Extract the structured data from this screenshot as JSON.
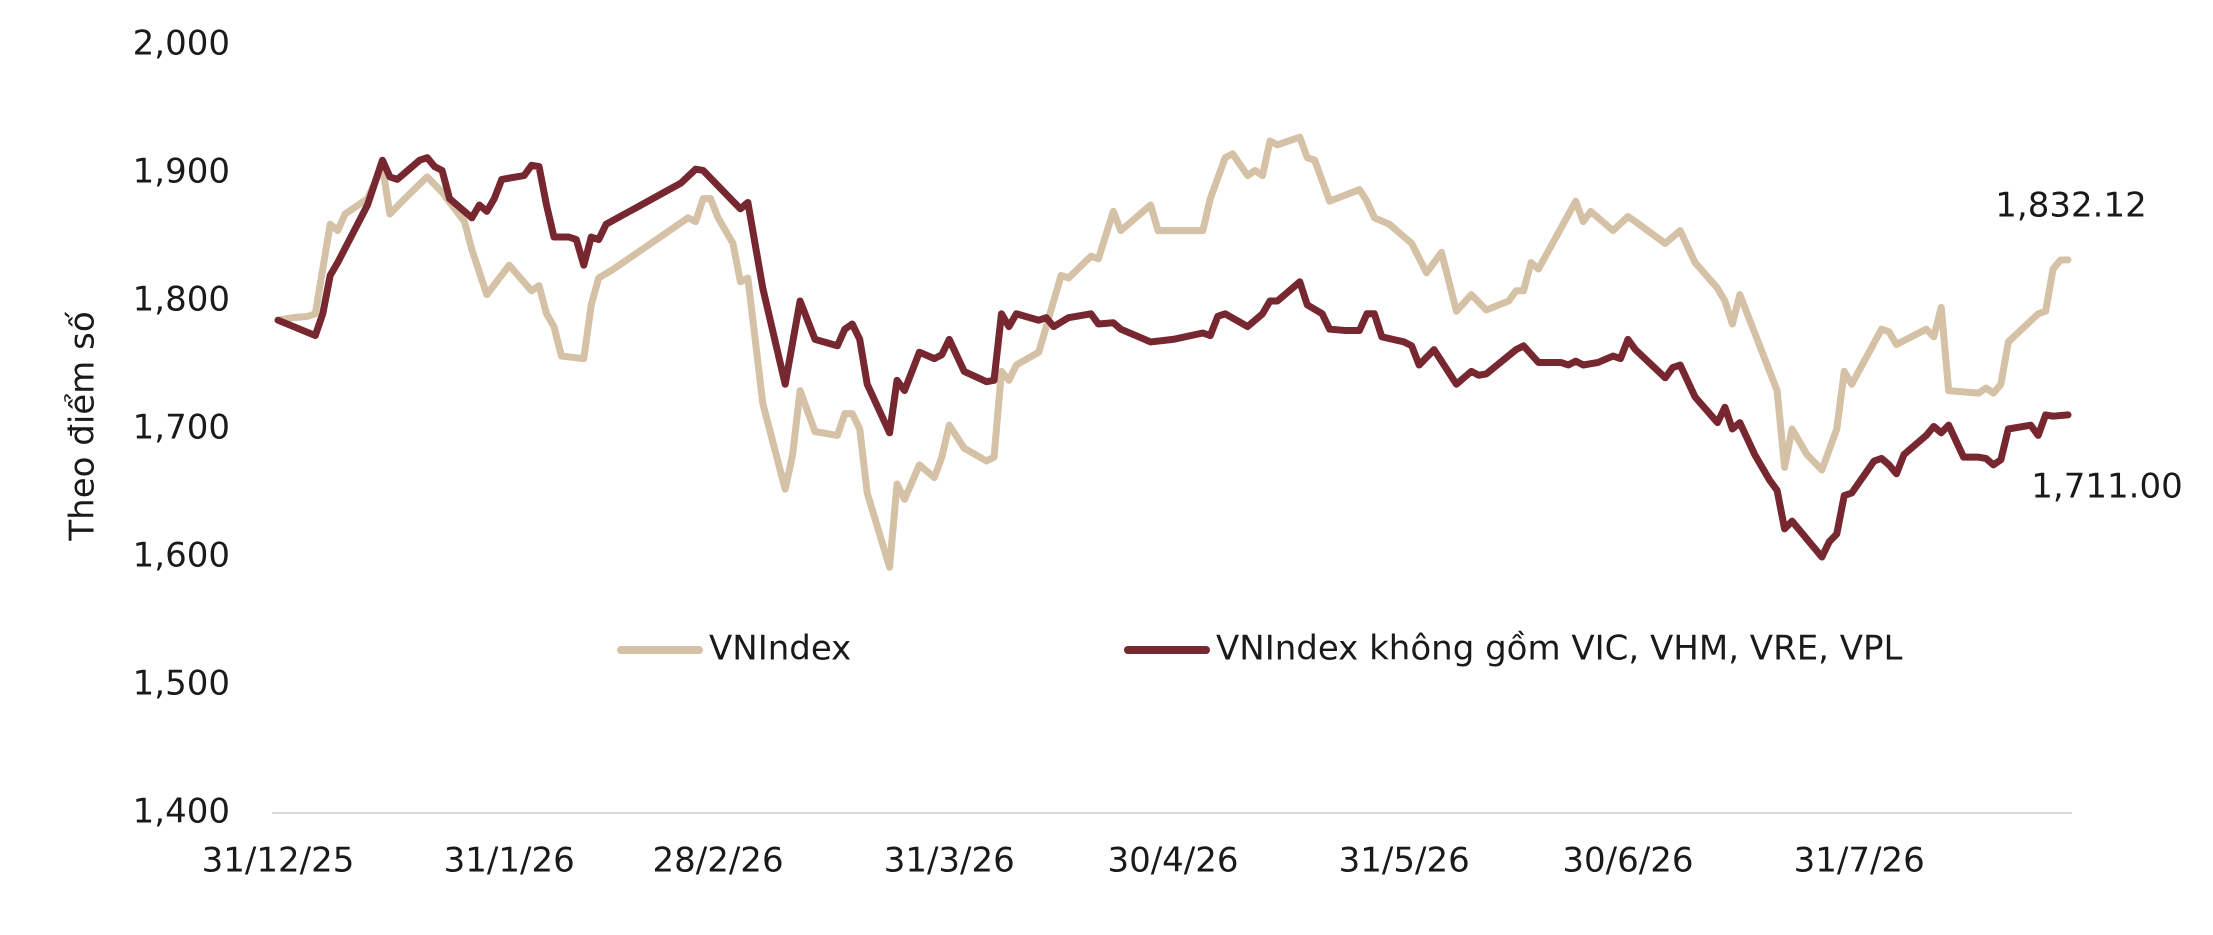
{
  "chart_data": {
    "type": "line",
    "y_label": "Theo điểm số",
    "ylim": [
      1400,
      2000
    ],
    "yticks": [
      {
        "value": 1400,
        "label": "1,400"
      },
      {
        "value": 1500,
        "label": "1,500"
      },
      {
        "value": 1600,
        "label": "1,600"
      },
      {
        "value": 1700,
        "label": "1,700"
      },
      {
        "value": 1800,
        "label": "1,800"
      },
      {
        "value": 1900,
        "label": "1,900"
      },
      {
        "value": 2000,
        "label": "2,000"
      }
    ],
    "xlim": [
      "2025-12-31",
      "2026-08-28"
    ],
    "xticks": [
      {
        "value": "2025-12-31",
        "label": "31/12/25"
      },
      {
        "value": "2026-01-31",
        "label": "31/1/26"
      },
      {
        "value": "2026-02-28",
        "label": "28/2/26"
      },
      {
        "value": "2026-03-31",
        "label": "31/3/26"
      },
      {
        "value": "2026-04-30",
        "label": "30/4/26"
      },
      {
        "value": "2026-05-31",
        "label": "31/5/26"
      },
      {
        "value": "2026-06-30",
        "label": "30/6/26"
      },
      {
        "value": "2026-07-31",
        "label": "31/7/26"
      }
    ],
    "grid": false,
    "legend": "center",
    "series": [
      {
        "name": "VNIndex",
        "color": "#d5c1a6",
        "end_label": "1,832.12",
        "x": [
          "2025-12-31",
          "2026-01-02",
          "2026-01-04",
          "2026-01-05",
          "2026-01-07",
          "2026-01-08",
          "2026-01-09",
          "2026-01-12",
          "2026-01-14",
          "2026-01-15",
          "2026-01-17",
          "2026-01-20",
          "2026-01-22",
          "2026-01-25",
          "2026-01-26",
          "2026-01-28",
          "2026-01-31",
          "2026-02-03",
          "2026-02-04",
          "2026-02-05",
          "2026-02-06",
          "2026-02-07",
          "2026-02-10",
          "2026-02-11",
          "2026-02-12",
          "2026-02-14",
          "2026-02-24",
          "2026-02-25",
          "2026-02-26",
          "2026-02-27",
          "2026-02-28",
          "2026-03-02",
          "2026-03-03",
          "2026-03-04",
          "2026-03-06",
          "2026-03-09",
          "2026-03-10",
          "2026-03-11",
          "2026-03-13",
          "2026-03-16",
          "2026-03-17",
          "2026-03-18",
          "2026-03-19",
          "2026-03-20",
          "2026-03-23",
          "2026-03-24",
          "2026-03-25",
          "2026-03-27",
          "2026-03-29",
          "2026-03-30",
          "2026-03-31",
          "2026-04-02",
          "2026-04-05",
          "2026-04-06",
          "2026-04-07",
          "2026-04-08",
          "2026-04-09",
          "2026-04-12",
          "2026-04-15",
          "2026-04-16",
          "2026-04-19",
          "2026-04-20",
          "2026-04-22",
          "2026-04-23",
          "2026-04-27",
          "2026-04-28",
          "2026-05-04",
          "2026-05-05",
          "2026-05-07",
          "2026-05-08",
          "2026-05-10",
          "2026-05-11",
          "2026-05-12",
          "2026-05-13",
          "2026-05-14",
          "2026-05-17",
          "2026-05-18",
          "2026-05-19",
          "2026-05-21",
          "2026-05-25",
          "2026-05-26",
          "2026-05-27",
          "2026-05-29",
          "2026-06-01",
          "2026-06-03",
          "2026-06-04",
          "2026-06-05",
          "2026-06-07",
          "2026-06-09",
          "2026-06-11",
          "2026-06-14",
          "2026-06-15",
          "2026-06-16",
          "2026-06-17",
          "2026-06-18",
          "2026-06-23",
          "2026-06-24",
          "2026-06-25",
          "2026-06-28",
          "2026-06-30",
          "2026-07-01",
          "2026-07-05",
          "2026-07-07",
          "2026-07-09",
          "2026-07-12",
          "2026-07-13",
          "2026-07-14",
          "2026-07-15",
          "2026-07-20",
          "2026-07-21",
          "2026-07-22",
          "2026-07-24",
          "2026-07-26",
          "2026-07-28",
          "2026-07-29",
          "2026-07-30",
          "2026-08-03",
          "2026-08-04",
          "2026-08-05",
          "2026-08-09",
          "2026-08-10",
          "2026-08-11",
          "2026-08-12",
          "2026-08-16",
          "2026-08-17",
          "2026-08-18",
          "2026-08-19",
          "2026-08-20",
          "2026-08-24",
          "2026-08-25",
          "2026-08-26",
          "2026-08-27",
          "2026-08-28"
        ],
        "values": [
          1785,
          1787,
          1788,
          1790,
          1860,
          1855,
          1868,
          1880,
          1905,
          1868,
          1880,
          1897,
          1885,
          1862,
          1840,
          1805,
          1828,
          1808,
          1812,
          1790,
          1780,
          1757,
          1755,
          1797,
          1818,
          1825,
          1865,
          1862,
          1880,
          1880,
          1865,
          1845,
          1815,
          1818,
          1720,
          1653,
          1680,
          1730,
          1698,
          1695,
          1712,
          1712,
          1700,
          1650,
          1592,
          1657,
          1645,
          1672,
          1662,
          1678,
          1703,
          1685,
          1675,
          1678,
          1745,
          1738,
          1750,
          1760,
          1820,
          1818,
          1835,
          1833,
          1870,
          1855,
          1875,
          1855,
          1855,
          1880,
          1912,
          1915,
          1898,
          1902,
          1898,
          1925,
          1922,
          1928,
          1912,
          1910,
          1878,
          1887,
          1878,
          1865,
          1860,
          1845,
          1822,
          1830,
          1838,
          1792,
          1805,
          1793,
          1800,
          1808,
          1808,
          1830,
          1825,
          1878,
          1862,
          1870,
          1855,
          1866,
          1862,
          1845,
          1855,
          1830,
          1810,
          1800,
          1782,
          1805,
          1730,
          1670,
          1700,
          1680,
          1668,
          1700,
          1745,
          1735,
          1778,
          1776,
          1766,
          1778,
          1772,
          1795,
          1730,
          1728,
          1732,
          1728,
          1735,
          1768,
          1790,
          1792,
          1825,
          1832,
          1832.12
        ]
      },
      {
        "name": "VNIndex không gồm VIC, VHM, VRE, VPL",
        "color": "#76272f",
        "end_label": "1,711.00",
        "x": [
          "2025-12-31",
          "2026-01-05",
          "2026-01-06",
          "2026-01-07",
          "2026-01-08",
          "2026-01-12",
          "2026-01-14",
          "2026-01-15",
          "2026-01-16",
          "2026-01-19",
          "2026-01-20",
          "2026-01-21",
          "2026-01-22",
          "2026-01-23",
          "2026-01-26",
          "2026-01-27",
          "2026-01-28",
          "2026-01-29",
          "2026-01-30",
          "2026-02-02",
          "2026-02-03",
          "2026-02-04",
          "2026-02-05",
          "2026-02-06",
          "2026-02-08",
          "2026-02-09",
          "2026-02-10",
          "2026-02-11",
          "2026-02-12",
          "2026-02-13",
          "2026-02-23",
          "2026-02-25",
          "2026-02-26",
          "2026-03-02",
          "2026-03-03",
          "2026-03-04",
          "2026-03-06",
          "2026-03-09",
          "2026-03-11",
          "2026-03-13",
          "2026-03-16",
          "2026-03-17",
          "2026-03-18",
          "2026-03-19",
          "2026-03-20",
          "2026-03-23",
          "2026-03-24",
          "2026-03-25",
          "2026-03-27",
          "2026-03-29",
          "2026-03-30",
          "2026-03-31",
          "2026-04-02",
          "2026-04-05",
          "2026-04-06",
          "2026-04-07",
          "2026-04-08",
          "2026-04-09",
          "2026-04-12",
          "2026-04-13",
          "2026-04-14",
          "2026-04-16",
          "2026-04-19",
          "2026-04-20",
          "2026-04-22",
          "2026-04-23",
          "2026-04-27",
          "2026-04-30",
          "2026-05-04",
          "2026-05-05",
          "2026-05-06",
          "2026-05-07",
          "2026-05-10",
          "2026-05-12",
          "2026-05-13",
          "2026-05-14",
          "2026-05-17",
          "2026-05-18",
          "2026-05-20",
          "2026-05-21",
          "2026-05-23",
          "2026-05-25",
          "2026-05-26",
          "2026-05-27",
          "2026-05-28",
          "2026-05-31",
          "2026-06-01",
          "2026-06-02",
          "2026-06-04",
          "2026-06-07",
          "2026-06-09",
          "2026-06-10",
          "2026-06-11",
          "2026-06-15",
          "2026-06-16",
          "2026-06-18",
          "2026-06-21",
          "2026-06-22",
          "2026-06-23",
          "2026-06-24",
          "2026-06-26",
          "2026-06-28",
          "2026-06-29",
          "2026-06-30",
          "2026-07-01",
          "2026-07-05",
          "2026-07-06",
          "2026-07-07",
          "2026-07-09",
          "2026-07-12",
          "2026-07-13",
          "2026-07-14",
          "2026-07-15",
          "2026-07-17",
          "2026-07-19",
          "2026-07-20",
          "2026-07-21",
          "2026-07-22",
          "2026-07-24",
          "2026-07-26",
          "2026-07-27",
          "2026-07-28",
          "2026-07-29",
          "2026-07-30",
          "2026-08-02",
          "2026-08-03",
          "2026-08-04",
          "2026-08-05",
          "2026-08-06",
          "2026-08-09",
          "2026-08-10",
          "2026-08-11",
          "2026-08-12",
          "2026-08-14",
          "2026-08-16",
          "2026-08-17",
          "2026-08-18",
          "2026-08-19",
          "2026-08-20",
          "2026-08-23",
          "2026-08-24",
          "2026-08-25",
          "2026-08-26",
          "2026-08-28"
        ],
        "values": [
          1785,
          1773,
          1790,
          1820,
          1830,
          1875,
          1910,
          1897,
          1895,
          1910,
          1912,
          1905,
          1902,
          1880,
          1865,
          1875,
          1870,
          1880,
          1895,
          1898,
          1906,
          1905,
          1875,
          1850,
          1850,
          1848,
          1828,
          1850,
          1848,
          1860,
          1892,
          1903,
          1902,
          1878,
          1872,
          1877,
          1810,
          1735,
          1800,
          1770,
          1765,
          1778,
          1782,
          1770,
          1735,
          1697,
          1738,
          1730,
          1760,
          1755,
          1758,
          1770,
          1745,
          1737,
          1738,
          1790,
          1780,
          1790,
          1785,
          1787,
          1780,
          1787,
          1790,
          1782,
          1783,
          1778,
          1768,
          1770,
          1775,
          1773,
          1788,
          1790,
          1780,
          1790,
          1800,
          1800,
          1815,
          1797,
          1790,
          1778,
          1777,
          1777,
          1790,
          1790,
          1772,
          1768,
          1765,
          1750,
          1762,
          1735,
          1745,
          1742,
          1743,
          1762,
          1765,
          1752,
          1752,
          1750,
          1753,
          1750,
          1752,
          1757,
          1755,
          1770,
          1762,
          1740,
          1748,
          1750,
          1725,
          1705,
          1717,
          1700,
          1705,
          1680,
          1660,
          1652,
          1622,
          1628,
          1614,
          1600,
          1612,
          1618,
          1648,
          1650,
          1675,
          1677,
          1672,
          1665,
          1680,
          1695,
          1702,
          1697,
          1703,
          1678,
          1678,
          1677,
          1672,
          1676,
          1700,
          1703,
          1695,
          1711,
          1710,
          1711.0
        ]
      }
    ]
  }
}
